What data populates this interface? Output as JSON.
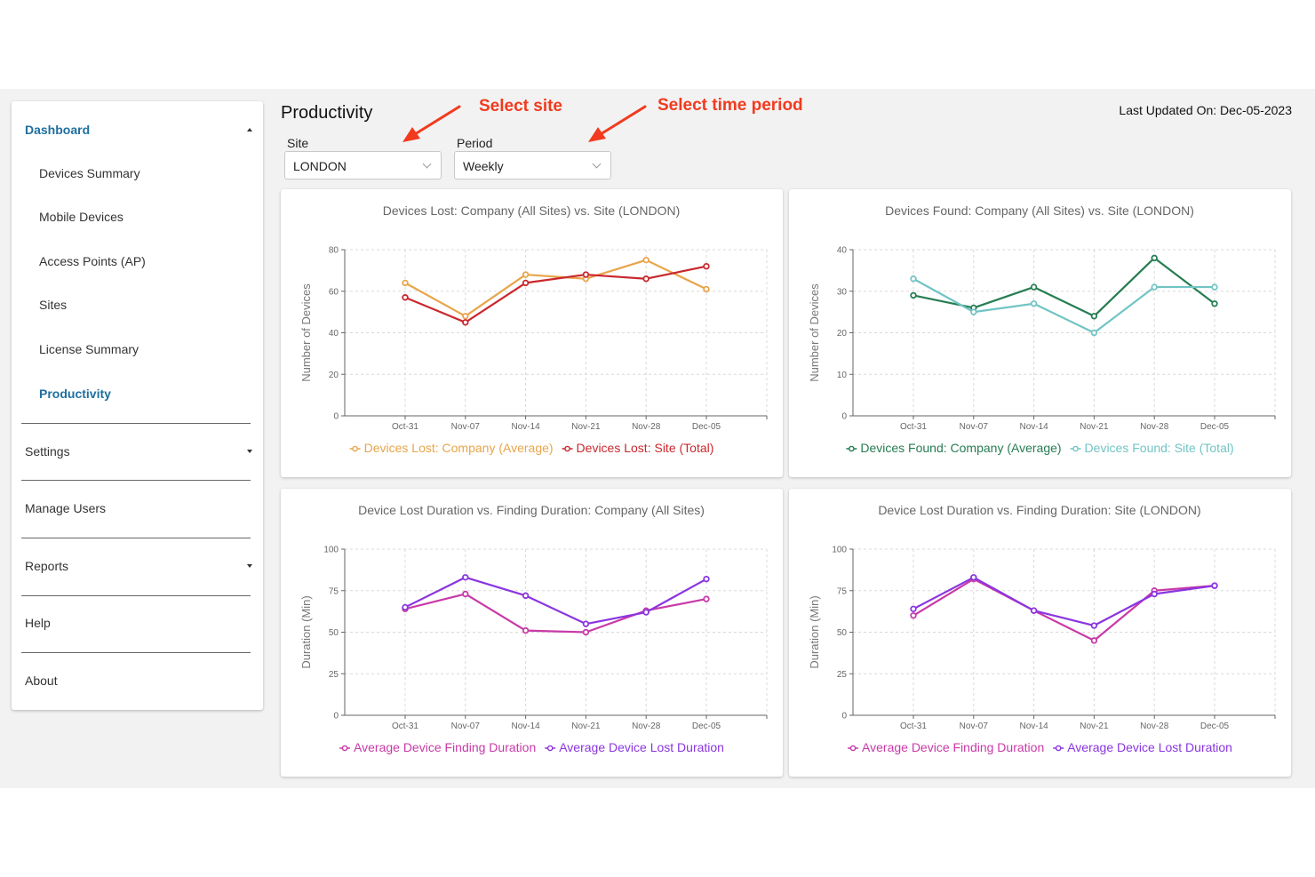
{
  "sidebar": {
    "items": [
      {
        "label": "Dashboard",
        "type": "section",
        "active": true,
        "caret": "up"
      },
      {
        "label": "Devices Summary",
        "type": "sub"
      },
      {
        "label": "Mobile Devices",
        "type": "sub"
      },
      {
        "label": "Access Points (AP)",
        "type": "sub"
      },
      {
        "label": "Sites",
        "type": "sub"
      },
      {
        "label": "License Summary",
        "type": "sub"
      },
      {
        "label": "Productivity",
        "type": "sub",
        "active": true
      },
      {
        "label": "Settings",
        "type": "section",
        "caret": "down"
      },
      {
        "label": "Manage Users",
        "type": "section"
      },
      {
        "label": "Reports",
        "type": "section",
        "caret": "down"
      },
      {
        "label": "Help",
        "type": "section"
      },
      {
        "label": "About",
        "type": "section"
      }
    ]
  },
  "header": {
    "title": "Productivity",
    "last_updated": "Last Updated On: Dec-05-2023"
  },
  "annotations": {
    "site": "Select site",
    "period": "Select time period",
    "color": "#f23a1e"
  },
  "filters": {
    "site": {
      "label": "Site",
      "value": "LONDON"
    },
    "period": {
      "label": "Period",
      "value": "Weekly"
    }
  },
  "colors": {
    "accent": "#1f6f9f",
    "lost_company": "#e8a54b",
    "lost_site": "#c9282d",
    "found_company": "#267d52",
    "found_site": "#72c4c4",
    "finding_duration": "#c83aa7",
    "lost_duration": "#8a35e0"
  },
  "chart_data": [
    {
      "type": "line",
      "title": "Devices Lost: Company (All Sites) vs. Site (LONDON)",
      "ylabel": "Number of Devices",
      "x": [
        "Oct-31",
        "Nov-07",
        "Nov-14",
        "Nov-21",
        "Nov-28",
        "Dec-05"
      ],
      "ylim": [
        0,
        80
      ],
      "yticks": [
        0,
        20,
        40,
        60,
        80
      ],
      "grid": true,
      "legend": "bottom",
      "series": [
        {
          "name": "Devices Lost: Company (Average)",
          "color": "#e8a54b",
          "values": [
            64,
            48,
            68,
            66,
            75,
            61
          ]
        },
        {
          "name": "Devices Lost: Site (Total)",
          "color": "#c9282d",
          "values": [
            57,
            45,
            64,
            68,
            66,
            72
          ]
        }
      ]
    },
    {
      "type": "line",
      "title": "Devices Found: Company (All Sites) vs. Site (LONDON)",
      "ylabel": "Number of Devices",
      "x": [
        "Oct-31",
        "Nov-07",
        "Nov-14",
        "Nov-21",
        "Nov-28",
        "Dec-05"
      ],
      "ylim": [
        0,
        40
      ],
      "yticks": [
        0,
        10,
        20,
        30,
        40
      ],
      "grid": true,
      "legend": "bottom",
      "series": [
        {
          "name": "Devices Found: Company (Average)",
          "color": "#267d52",
          "values": [
            29,
            26,
            31,
            24,
            38,
            27
          ]
        },
        {
          "name": "Devices Found: Site (Total)",
          "color": "#72c4c4",
          "values": [
            33,
            25,
            27,
            20,
            31,
            31
          ]
        }
      ]
    },
    {
      "type": "line",
      "title": "Device Lost Duration vs. Finding Duration: Company (All Sites)",
      "ylabel": "Duration (Min)",
      "x": [
        "Oct-31",
        "Nov-07",
        "Nov-14",
        "Nov-21",
        "Nov-28",
        "Dec-05"
      ],
      "ylim": [
        0,
        100
      ],
      "yticks": [
        0,
        25,
        50,
        75,
        100
      ],
      "grid": true,
      "legend": "bottom",
      "series": [
        {
          "name": "Average Device Finding Duration",
          "color": "#c83aa7",
          "values": [
            64,
            73,
            51,
            50,
            63,
            70
          ]
        },
        {
          "name": "Average Device Lost Duration",
          "color": "#8a35e0",
          "values": [
            65,
            83,
            72,
            55,
            62,
            82
          ]
        }
      ]
    },
    {
      "type": "line",
      "title": "Device Lost Duration vs. Finding Duration: Site (LONDON)",
      "ylabel": "Duration (Min)",
      "x": [
        "Oct-31",
        "Nov-07",
        "Nov-14",
        "Nov-21",
        "Nov-28",
        "Dec-05"
      ],
      "ylim": [
        0,
        100
      ],
      "yticks": [
        0,
        25,
        50,
        75,
        100
      ],
      "grid": true,
      "legend": "bottom",
      "series": [
        {
          "name": "Average Device Finding Duration",
          "color": "#c83aa7",
          "values": [
            60,
            82,
            63,
            45,
            75,
            78
          ]
        },
        {
          "name": "Average Device Lost Duration",
          "color": "#8a35e0",
          "values": [
            64,
            83,
            63,
            54,
            73,
            78
          ]
        }
      ]
    }
  ]
}
